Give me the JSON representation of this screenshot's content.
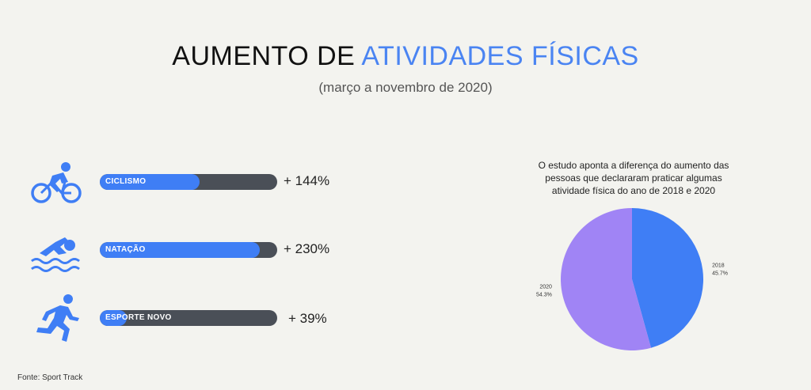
{
  "title": {
    "part1": "AUMENTO DE ",
    "part2": "ATIVIDADES FÍSICAS"
  },
  "subtitle": "(março a novembro de 2020)",
  "colors": {
    "accent": "#4a84f2",
    "bar_fill": "#3f7ef5",
    "bar_track": "#4a4f57",
    "pie_2018": "#3f7ef5",
    "pie_2020": "#a084f5"
  },
  "activities": [
    {
      "label": "CICLISMO",
      "value_text": "+ 144%",
      "icon": "cycling-icon"
    },
    {
      "label": "NATAÇÃO",
      "value_text": "+ 230%",
      "icon": "swimming-icon"
    },
    {
      "label": "ESPORTE NOVO",
      "value_text": "+ 39%",
      "icon": "running-icon"
    }
  ],
  "pie": {
    "caption": "O estudo aponta a diferença do aumento das pessoas que declararam praticar algumas atividade física do ano de 2018 e 2020"
  },
  "chart_data": [
    {
      "type": "bar",
      "orientation": "horizontal",
      "categories": [
        "CICLISMO",
        "NATAÇÃO",
        "ESPORTE NOVO"
      ],
      "values": [
        144,
        230,
        39
      ],
      "data_labels": [
        "+ 144%",
        "+ 230%",
        "+ 39%"
      ]
    },
    {
      "type": "pie",
      "slices": [
        {
          "label": "2018",
          "value": 45.7,
          "value_text": "45.7%"
        },
        {
          "label": "2020",
          "value": 54.3,
          "value_text": "54.3%"
        }
      ]
    }
  ],
  "source": "Fonte: Sport Track"
}
